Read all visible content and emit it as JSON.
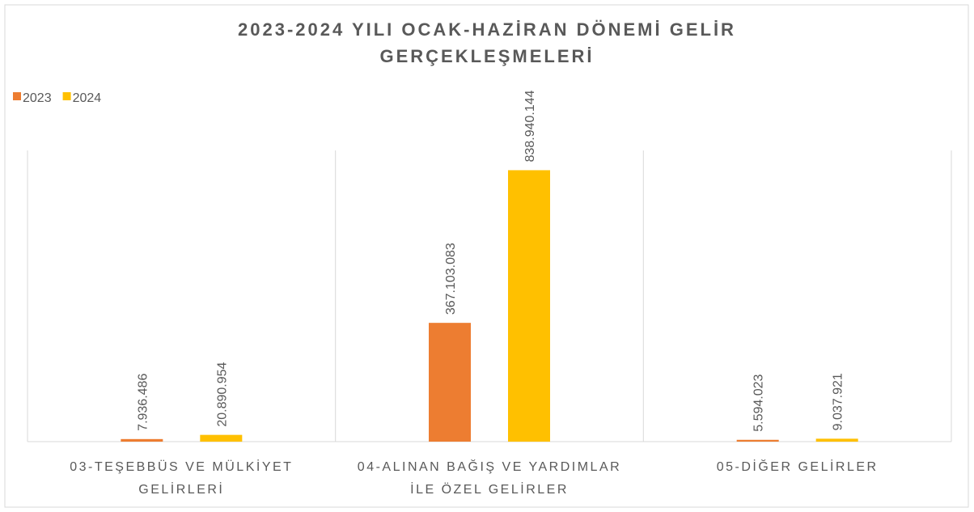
{
  "chart_data": {
    "type": "bar",
    "title": "2023-2024 YILI OCAK-HAZİRAN DÖNEMİ GELİR GERÇEKLEŞMELERİ",
    "categories": [
      "03-TEŞEBBÜS VE MÜLKİYET GELİRLERİ",
      "04-ALINAN BAĞIŞ VE YARDIMLAR İLE ÖZEL GELİRLER",
      "05-DİĞER GELİRLER"
    ],
    "series": [
      {
        "name": "2023",
        "color": "#ED7D31",
        "values": [
          7936486,
          367103083,
          5594023
        ],
        "value_labels": [
          "7.936.486",
          "367.103.083",
          "5.594.023"
        ]
      },
      {
        "name": "2024",
        "color": "#FFC000",
        "values": [
          20890954,
          838940144,
          9037921
        ],
        "value_labels": [
          "20.890.954",
          "838.940.144",
          "9.037.921"
        ]
      }
    ],
    "ylim": [
      0,
      900000000
    ],
    "legend": "top-left"
  }
}
